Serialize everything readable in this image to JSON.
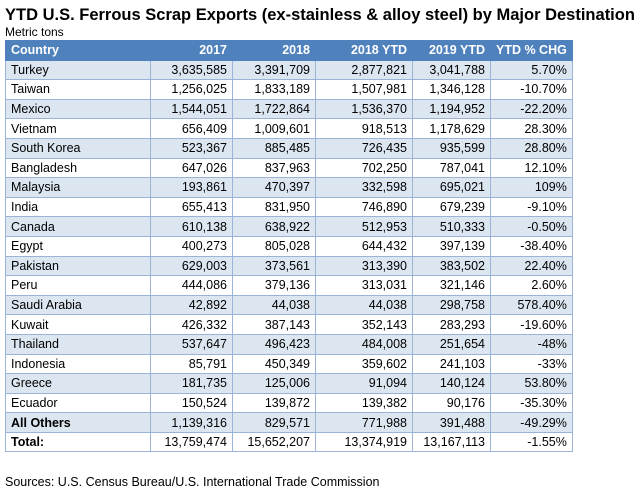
{
  "header": {
    "title": "YTD U.S. Ferrous Scrap Exports (ex-stainless & alloy steel) by Major Destination",
    "unit": "Metric tons"
  },
  "table": {
    "columns": [
      "Country",
      "2017",
      "2018",
      "2018 YTD",
      "2019 YTD",
      "YTD % CHG"
    ],
    "rows": [
      [
        "Turkey",
        "3,635,585",
        "3,391,709",
        "2,877,821",
        "3,041,788",
        "5.70%"
      ],
      [
        "Taiwan",
        "1,256,025",
        "1,833,189",
        "1,507,981",
        "1,346,128",
        "-10.70%"
      ],
      [
        "Mexico",
        "1,544,051",
        "1,722,864",
        "1,536,370",
        "1,194,952",
        "-22.20%"
      ],
      [
        "Vietnam",
        "656,409",
        "1,009,601",
        "918,513",
        "1,178,629",
        "28.30%"
      ],
      [
        "South Korea",
        "523,367",
        "885,485",
        "726,435",
        "935,599",
        "28.80%"
      ],
      [
        "Bangladesh",
        "647,026",
        "837,963",
        "702,250",
        "787,041",
        "12.10%"
      ],
      [
        "Malaysia",
        "193,861",
        "470,397",
        "332,598",
        "695,021",
        "109%"
      ],
      [
        "India",
        "655,413",
        "831,950",
        "746,890",
        "679,239",
        "-9.10%"
      ],
      [
        "Canada",
        "610,138",
        "638,922",
        "512,953",
        "510,333",
        "-0.50%"
      ],
      [
        "Egypt",
        "400,273",
        "805,028",
        "644,432",
        "397,139",
        "-38.40%"
      ],
      [
        "Pakistan",
        "629,003",
        "373,561",
        "313,390",
        "383,502",
        "22.40%"
      ],
      [
        "Peru",
        "444,086",
        "379,136",
        "313,031",
        "321,146",
        "2.60%"
      ],
      [
        "Saudi Arabia",
        "42,892",
        "44,038",
        "44,038",
        "298,758",
        "578.40%"
      ],
      [
        "Kuwait",
        "426,332",
        "387,143",
        "352,143",
        "283,293",
        "-19.60%"
      ],
      [
        "Thailand",
        "537,647",
        "496,423",
        "484,008",
        "251,654",
        "-48%"
      ],
      [
        "Indonesia",
        "85,791",
        "450,349",
        "359,602",
        "241,103",
        "-33%"
      ],
      [
        "Greece",
        "181,735",
        "125,006",
        "91,094",
        "140,124",
        "53.80%"
      ],
      [
        "Ecuador",
        "150,524",
        "139,872",
        "139,382",
        "90,176",
        "-35.30%"
      ],
      [
        "All Others",
        "1,139,316",
        "829,571",
        "771,988",
        "391,488",
        "-49.29%"
      ],
      [
        "Total:",
        "13,759,474",
        "15,652,207",
        "13,374,919",
        "13,167,113",
        "-1.55%"
      ]
    ]
  },
  "footer": {
    "source": "Sources: U.S. Census Bureau/U.S. International Trade Commission"
  }
}
